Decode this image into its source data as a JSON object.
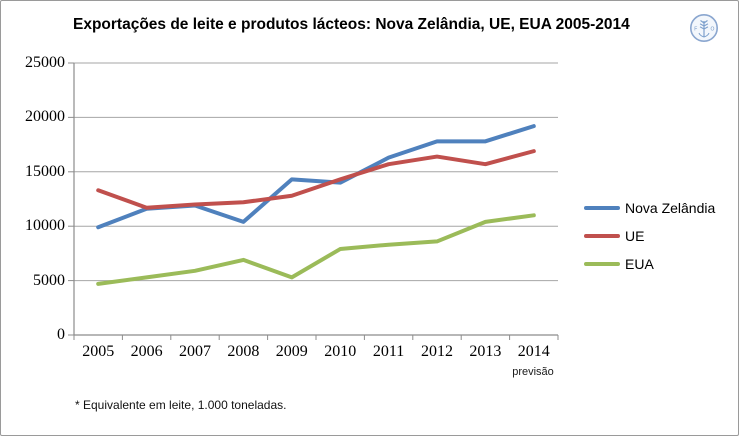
{
  "page": {
    "title": "Exportações de leite e produtos lácteos: Nova Zelândia, UE, EUA 2005-2014",
    "footnote": "* Equivalente em leite, 1.000 toneladas.",
    "forecast_label": "previsão",
    "logo_icon": "fao-logo"
  },
  "chart_data": {
    "type": "line",
    "title": "Exportações de leite e produtos lácteos: Nova Zelândia, UE, EUA 2005-2014",
    "categories": [
      "2005",
      "2006",
      "2007",
      "2008",
      "2009",
      "2010",
      "2011",
      "2012",
      "2013",
      "2014"
    ],
    "last_category_note": "previsão",
    "series": [
      {
        "name": "Nova Zelândia",
        "color": "#4F81BD",
        "values": [
          9900,
          11600,
          11900,
          10400,
          14300,
          14000,
          16300,
          17800,
          17800,
          19200
        ]
      },
      {
        "name": "UE",
        "color": "#C0504D",
        "values": [
          13300,
          11700,
          12000,
          12200,
          12800,
          14300,
          15700,
          16400,
          15700,
          16900
        ]
      },
      {
        "name": "EUA",
        "color": "#9BBB59",
        "values": [
          4700,
          5300,
          5900,
          6900,
          5300,
          7900,
          8300,
          8600,
          10400,
          11000
        ]
      }
    ],
    "xlabel": "",
    "ylabel": "",
    "ylim": [
      0,
      25000
    ],
    "yticks": [
      0,
      5000,
      10000,
      15000,
      20000,
      25000
    ],
    "grid": true,
    "legend_position": "right",
    "grid_color": "#A6A6A6",
    "axis_color": "#8C8C8C",
    "footnote": "* Equivalente em leite, 1.000 toneladas."
  }
}
